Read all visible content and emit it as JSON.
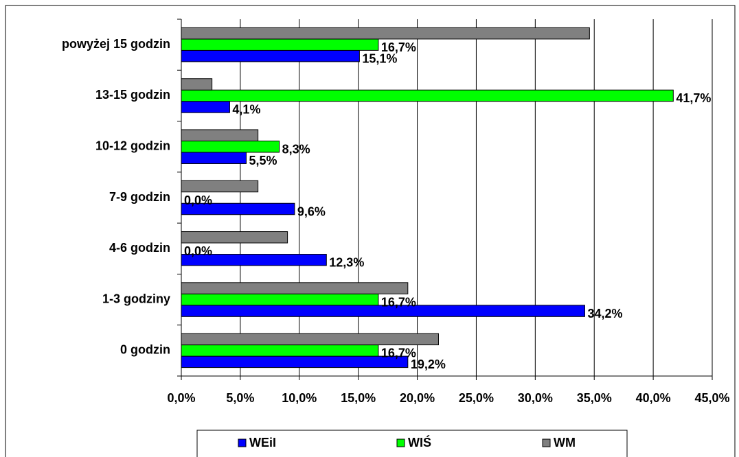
{
  "chart_data": {
    "type": "bar",
    "orientation": "horizontal",
    "categories": [
      "powyżej 15 godzin",
      "13-15 godzin",
      "10-12 godzin",
      "7-9 godzin",
      "4-6 godzin",
      "1-3 godziny",
      "0 godzin"
    ],
    "series": [
      {
        "name": "WEiI",
        "color": "#0000ff",
        "values": [
          15.1,
          4.1,
          5.5,
          9.6,
          12.3,
          34.2,
          19.2
        ],
        "value_labels": [
          "15,1%",
          "4,1%",
          "5,5%",
          "9,6%",
          "12,3%",
          "34,2%",
          "19,2%"
        ]
      },
      {
        "name": "WIŚ",
        "color": "#00ff00",
        "values": [
          16.7,
          41.7,
          8.3,
          0.0,
          0.0,
          16.7,
          16.7
        ],
        "value_labels": [
          "16,7%",
          "41,7%",
          "8,3%",
          "0,0%",
          "0,0%",
          "16,7%",
          "16,7%"
        ]
      },
      {
        "name": "WM",
        "color": "#808080",
        "values": [
          34.6,
          2.6,
          6.5,
          6.5,
          9.0,
          19.2,
          21.8
        ]
      }
    ],
    "xlim": [
      0,
      45
    ],
    "xticks": [
      {
        "value": 0,
        "label": "0,0%"
      },
      {
        "value": 5,
        "label": "5,0%"
      },
      {
        "value": 10,
        "label": "10,0%"
      },
      {
        "value": 15,
        "label": "15,0%"
      },
      {
        "value": 20,
        "label": "20,0%"
      },
      {
        "value": 25,
        "label": "25,0%"
      },
      {
        "value": 30,
        "label": "30,0%"
      },
      {
        "value": 35,
        "label": "35,0%"
      },
      {
        "value": 40,
        "label": "40,0%"
      },
      {
        "value": 45,
        "label": "45,0%"
      }
    ],
    "grid": true,
    "legend": "bottom"
  }
}
